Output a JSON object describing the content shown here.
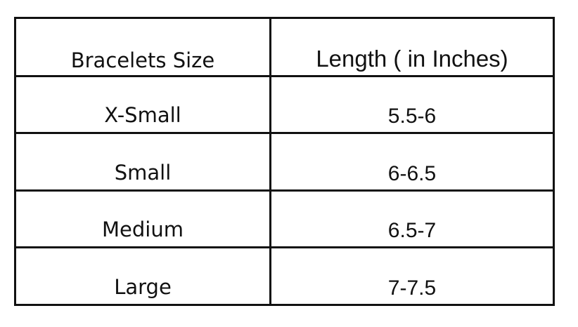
{
  "table": {
    "headers": [
      "Bracelets Size",
      "Length ( in Inches)"
    ],
    "rows": [
      [
        "X-Small",
        "5.5-6"
      ],
      [
        "Small",
        "6-6.5"
      ],
      [
        "Medium",
        "6.5-7"
      ],
      [
        "Large",
        "7-7.5"
      ]
    ]
  }
}
